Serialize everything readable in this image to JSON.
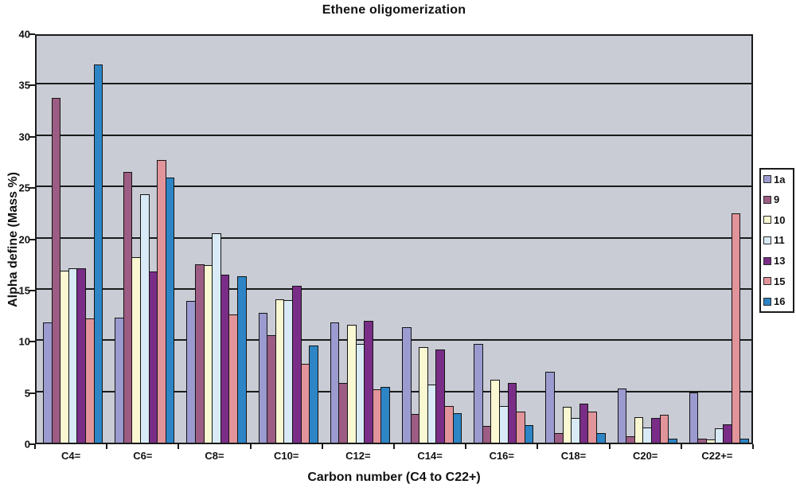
{
  "title": "Ethene oligomerization",
  "chart_data": {
    "type": "bar",
    "title": "Ethene oligomerization",
    "xlabel": "Carbon number (C4 to C22+)",
    "ylabel": "Alpha define (Mass %)",
    "ylim": [
      0,
      40
    ],
    "yticks": [
      0,
      5,
      10,
      15,
      20,
      25,
      30,
      35,
      40
    ],
    "grid": true,
    "legend_position": "right",
    "categories": [
      "C4=",
      "C6=",
      "C8=",
      "C10=",
      "C12=",
      "C14=",
      "C16=",
      "C18=",
      "C20=",
      "C22+="
    ],
    "series": [
      {
        "name": "1a",
        "color": "#9B9BD0",
        "values": [
          11.7,
          12.2,
          13.8,
          12.7,
          11.7,
          11.3,
          9.6,
          6.9,
          5.3,
          4.9
        ]
      },
      {
        "name": "9",
        "color": "#9D5C83",
        "values": [
          33.6,
          26.4,
          17.4,
          10.5,
          5.8,
          2.8,
          1.6,
          0.9,
          0.6,
          0.4
        ]
      },
      {
        "name": "10",
        "color": "#FAF8D2",
        "values": [
          16.8,
          18.1,
          17.3,
          14.0,
          11.5,
          9.3,
          6.1,
          3.5,
          2.5,
          0.3
        ]
      },
      {
        "name": "11",
        "color": "#D8EAF5",
        "values": [
          17.0,
          24.2,
          20.4,
          13.9,
          9.6,
          5.7,
          3.6,
          2.4,
          1.5,
          1.4
        ]
      },
      {
        "name": "13",
        "color": "#7A2D87",
        "values": [
          17.0,
          16.7,
          16.4,
          15.3,
          11.9,
          9.1,
          5.8,
          3.8,
          2.4,
          1.8
        ]
      },
      {
        "name": "15",
        "color": "#E2949B",
        "values": [
          12.1,
          27.6,
          12.5,
          7.7,
          5.2,
          3.6,
          3.0,
          3.0,
          2.7,
          22.4
        ]
      },
      {
        "name": "16",
        "color": "#2D85C6",
        "values": [
          36.9,
          25.9,
          16.2,
          9.5,
          5.4,
          2.9,
          1.7,
          0.9,
          0.4,
          0.4
        ]
      }
    ],
    "colors": {
      "plot_bg": "#C9CCD5",
      "grid": "#1b1b1b",
      "bar_border": "#141414",
      "legend_bg": "#FFFFFF",
      "text": "#111111"
    }
  }
}
